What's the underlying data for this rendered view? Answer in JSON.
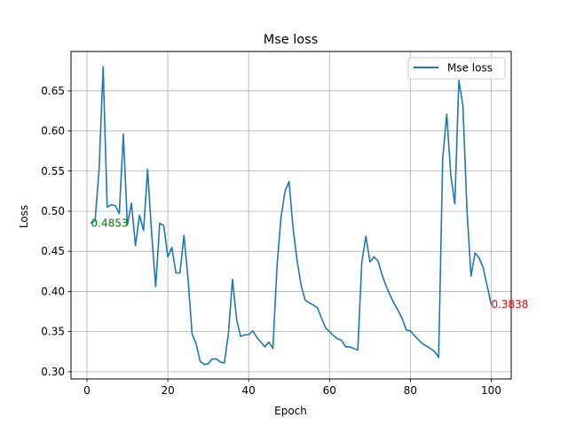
{
  "chart_data": {
    "type": "line",
    "title": "Mse loss",
    "xlabel": "Epoch",
    "ylabel": "Loss",
    "xlim": [
      -3.95,
      104.95
    ],
    "ylim": [
      0.291,
      0.699
    ],
    "xticks": [
      0,
      20,
      40,
      60,
      80,
      100
    ],
    "yticks": [
      0.3,
      0.35,
      0.4,
      0.45,
      0.5,
      0.55,
      0.6,
      0.65
    ],
    "grid": true,
    "legend_position": "top-right",
    "series": [
      {
        "name": "Mse loss",
        "color": "#1f77b4",
        "x": [
          1,
          2,
          3,
          4,
          5,
          6,
          7,
          8,
          9,
          10,
          11,
          12,
          13,
          14,
          15,
          16,
          17,
          18,
          19,
          20,
          21,
          22,
          23,
          24,
          25,
          26,
          27,
          28,
          29,
          30,
          31,
          32,
          33,
          34,
          35,
          36,
          37,
          38,
          39,
          40,
          41,
          42,
          43,
          44,
          45,
          46,
          47,
          48,
          49,
          50,
          51,
          52,
          53,
          54,
          55,
          56,
          57,
          58,
          59,
          60,
          61,
          62,
          63,
          64,
          65,
          66,
          67,
          68,
          69,
          70,
          71,
          72,
          73,
          74,
          75,
          76,
          77,
          78,
          79,
          80,
          81,
          82,
          83,
          84,
          85,
          86,
          87,
          88,
          89,
          90,
          91,
          92,
          93,
          94,
          95,
          96,
          97,
          98,
          99,
          100
        ],
        "y": [
          0.4853,
          0.488,
          0.552,
          0.68,
          0.505,
          0.508,
          0.507,
          0.497,
          0.596,
          0.483,
          0.51,
          0.457,
          0.495,
          0.476,
          0.552,
          0.472,
          0.406,
          0.485,
          0.482,
          0.443,
          0.455,
          0.423,
          0.423,
          0.47,
          0.416,
          0.347,
          0.335,
          0.313,
          0.309,
          0.31,
          0.316,
          0.316,
          0.312,
          0.311,
          0.348,
          0.415,
          0.366,
          0.344,
          0.346,
          0.346,
          0.351,
          0.343,
          0.337,
          0.331,
          0.337,
          0.329,
          0.43,
          0.492,
          0.525,
          0.537,
          0.478,
          0.438,
          0.407,
          0.389,
          0.386,
          0.383,
          0.38,
          0.367,
          0.355,
          0.35,
          0.345,
          0.341,
          0.339,
          0.331,
          0.331,
          0.329,
          0.327,
          0.437,
          0.469,
          0.437,
          0.443,
          0.438,
          0.421,
          0.407,
          0.395,
          0.385,
          0.376,
          0.366,
          0.352,
          0.351,
          0.345,
          0.34,
          0.335,
          0.332,
          0.329,
          0.325,
          0.318,
          0.565,
          0.621,
          0.545,
          0.509,
          0.663,
          0.632,
          0.502,
          0.419,
          0.448,
          0.442,
          0.43,
          0.407,
          0.3838
        ]
      }
    ],
    "annotations": [
      {
        "text": "0.4853",
        "x": 1,
        "y": 0.4853,
        "color": "#008000"
      },
      {
        "text": "0.3838",
        "x": 100,
        "y": 0.3838,
        "color": "#ff0000"
      }
    ]
  }
}
